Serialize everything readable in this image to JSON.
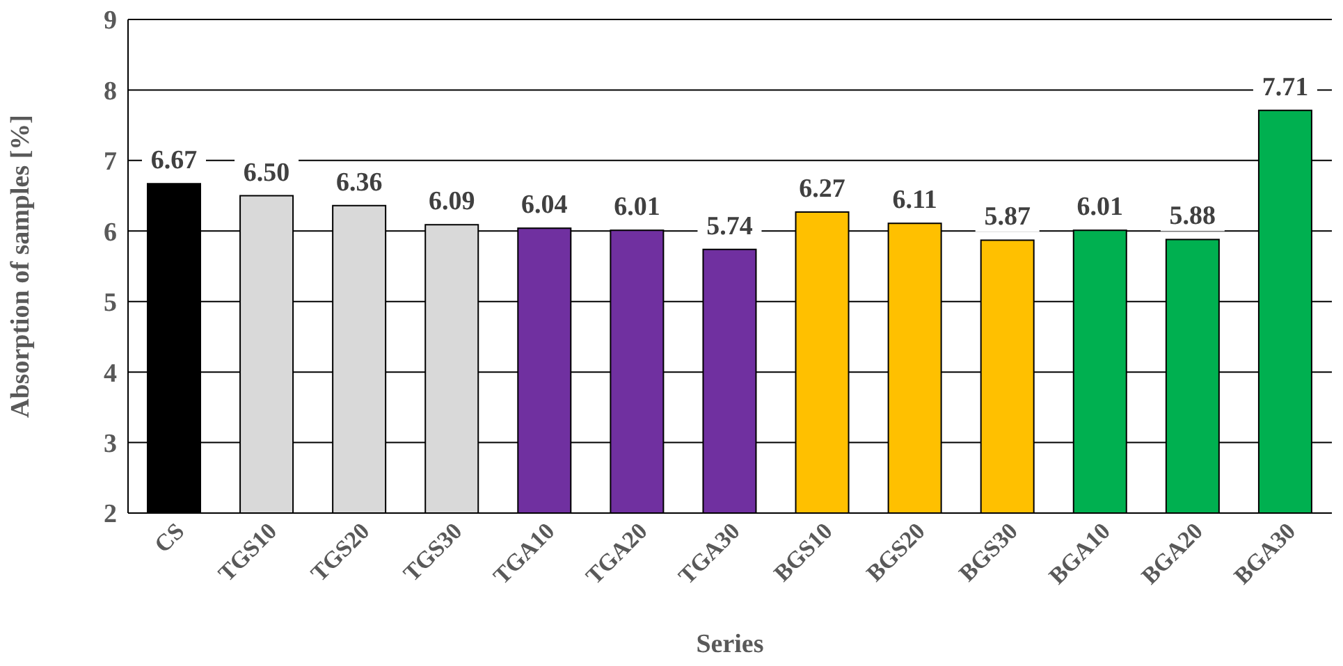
{
  "chart_data": {
    "type": "bar",
    "xlabel": "Series",
    "ylabel": "Absorption of samples [%]",
    "categories": [
      "CS",
      "TGS10",
      "TGS20",
      "TGS30",
      "TGA10",
      "TGA20",
      "TGA30",
      "BGS10",
      "BGS20",
      "BGS30",
      "BGA10",
      "BGA20",
      "BGA30"
    ],
    "values": [
      6.67,
      6.5,
      6.36,
      6.09,
      6.04,
      6.01,
      5.74,
      6.27,
      6.11,
      5.87,
      6.01,
      5.88,
      7.71
    ],
    "value_labels": [
      "6.67",
      "6.50",
      "6.36",
      "6.09",
      "6.04",
      "6.01",
      "5.74",
      "6.27",
      "6.11",
      "5.87",
      "6.01",
      "5.88",
      "7.71"
    ],
    "colors": [
      "#000000",
      "#d9d9d9",
      "#d9d9d9",
      "#d9d9d9",
      "#7030a0",
      "#7030a0",
      "#7030a0",
      "#ffc000",
      "#ffc000",
      "#ffc000",
      "#00b050",
      "#00b050",
      "#00b050"
    ],
    "ylim": [
      2,
      9
    ],
    "yticks": [
      2,
      3,
      4,
      5,
      6,
      7,
      8,
      9
    ],
    "grid": "y",
    "legend": false
  }
}
